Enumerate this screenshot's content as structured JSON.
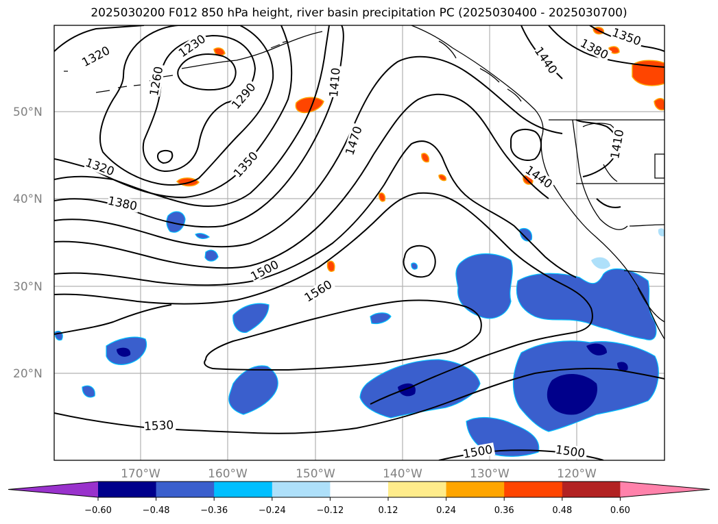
{
  "title": "2025030200 F012 850 hPa height, river basin precipitation PC (2025030400 - 2025030700)",
  "map": {
    "latitude_labels": [
      "50°N",
      "40°N",
      "30°N",
      "20°N"
    ],
    "longitude_labels": [
      "170°W",
      "160°W",
      "150°W",
      "140°W",
      "130°W",
      "120°W"
    ],
    "gridlines": true,
    "height_contours_labels": [
      "1230",
      "1260",
      "1290",
      "1320",
      "1320",
      "1350",
      "1350",
      "1380",
      "1380",
      "1410",
      "1410",
      "1440",
      "1440",
      "1470",
      "1500",
      "1500",
      "1500",
      "1530",
      "1560"
    ]
  },
  "colorbar": {
    "ticks": [
      "−0.60",
      "−0.48",
      "−0.36",
      "−0.24",
      "−0.12",
      "0.12",
      "0.24",
      "0.36",
      "0.48",
      "0.60"
    ],
    "colors": [
      "#9932cc",
      "#00008b",
      "#3a5fcd",
      "#00bfff",
      "#aee0fa",
      "#ffffff",
      "#ffec8b",
      "#ffa500",
      "#ff4500",
      "#b22222",
      "#ff82ab"
    ]
  }
}
